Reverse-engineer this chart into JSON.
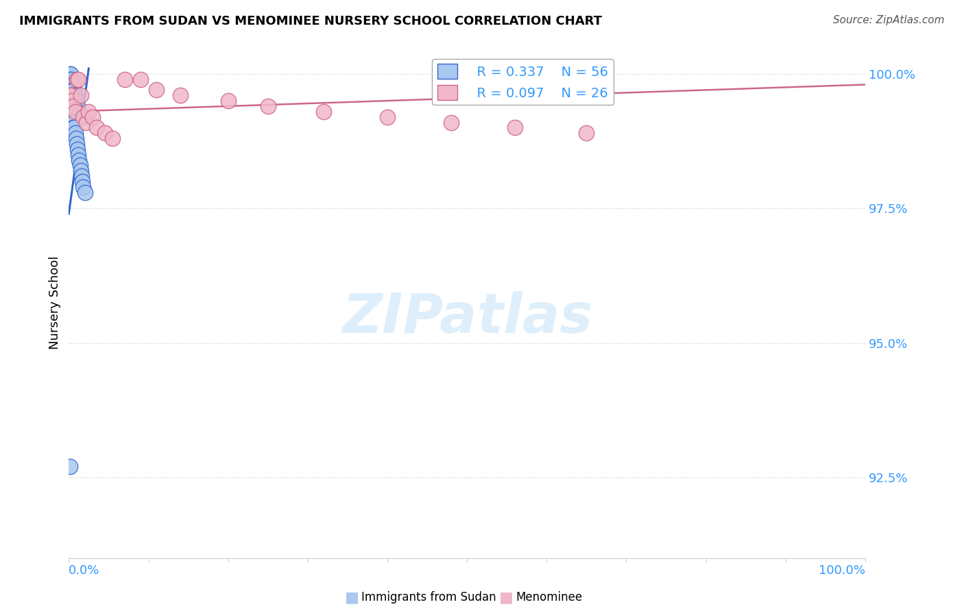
{
  "title": "IMMIGRANTS FROM SUDAN VS MENOMINEE NURSERY SCHOOL CORRELATION CHART",
  "source": "Source: ZipAtlas.com",
  "ylabel": "Nursery School",
  "ylabel_right_labels": [
    "100.0%",
    "97.5%",
    "95.0%",
    "92.5%"
  ],
  "ylabel_right_values": [
    1.0,
    0.975,
    0.95,
    0.925
  ],
  "legend_blue_r": "R = 0.337",
  "legend_blue_n": "N = 56",
  "legend_pink_r": "R = 0.097",
  "legend_pink_n": "N = 26",
  "blue_color": "#aac8f0",
  "blue_edge_color": "#3366cc",
  "pink_color": "#f0b8c8",
  "pink_edge_color": "#cc6688",
  "blue_line_color": "#3366cc",
  "pink_line_color": "#cc6688",
  "background_color": "#ffffff",
  "grid_color": "#cccccc",
  "title_color": "#000000",
  "axis_label_color": "#3399ff",
  "watermark_color": "#d0e8f8",
  "xlim": [
    0.0,
    1.0
  ],
  "ylim": [
    0.91,
    1.005
  ],
  "blue_x": [
    0.001,
    0.001,
    0.001,
    0.002,
    0.002,
    0.002,
    0.002,
    0.002,
    0.003,
    0.003,
    0.003,
    0.003,
    0.004,
    0.004,
    0.004,
    0.005,
    0.005,
    0.005,
    0.006,
    0.006,
    0.007,
    0.007,
    0.008,
    0.008,
    0.009,
    0.01,
    0.01,
    0.011,
    0.012,
    0.013,
    0.001,
    0.001,
    0.002,
    0.002,
    0.003,
    0.003,
    0.004,
    0.004,
    0.005,
    0.005,
    0.006,
    0.006,
    0.007,
    0.008,
    0.009,
    0.01,
    0.011,
    0.012,
    0.013,
    0.014,
    0.015,
    0.016,
    0.017,
    0.018,
    0.02,
    0.001
  ],
  "blue_y": [
    1.0,
    0.999,
    0.998,
    1.0,
    0.999,
    0.998,
    0.997,
    0.996,
    0.999,
    0.998,
    0.997,
    0.996,
    0.998,
    0.997,
    0.996,
    0.998,
    0.997,
    0.996,
    0.997,
    0.996,
    0.997,
    0.996,
    0.996,
    0.995,
    0.995,
    0.995,
    0.994,
    0.994,
    0.993,
    0.992,
    0.996,
    0.995,
    0.995,
    0.994,
    0.994,
    0.993,
    0.993,
    0.992,
    0.992,
    0.991,
    0.991,
    0.99,
    0.99,
    0.989,
    0.988,
    0.987,
    0.986,
    0.985,
    0.984,
    0.983,
    0.982,
    0.981,
    0.98,
    0.979,
    0.978,
    0.927
  ],
  "pink_x": [
    0.001,
    0.002,
    0.004,
    0.006,
    0.008,
    0.01,
    0.012,
    0.015,
    0.018,
    0.022,
    0.025,
    0.03,
    0.035,
    0.045,
    0.055,
    0.07,
    0.09,
    0.11,
    0.14,
    0.2,
    0.25,
    0.32,
    0.4,
    0.48,
    0.56,
    0.65
  ],
  "pink_y": [
    0.996,
    0.996,
    0.995,
    0.994,
    0.993,
    0.999,
    0.999,
    0.996,
    0.992,
    0.991,
    0.993,
    0.992,
    0.99,
    0.989,
    0.988,
    0.999,
    0.999,
    0.997,
    0.996,
    0.995,
    0.994,
    0.993,
    0.992,
    0.991,
    0.99,
    0.989
  ],
  "blue_line_x": [
    0.0,
    0.025
  ],
  "blue_line_y": [
    0.974,
    1.001
  ],
  "pink_line_x": [
    0.0,
    1.0
  ],
  "pink_line_y": [
    0.993,
    0.998
  ]
}
